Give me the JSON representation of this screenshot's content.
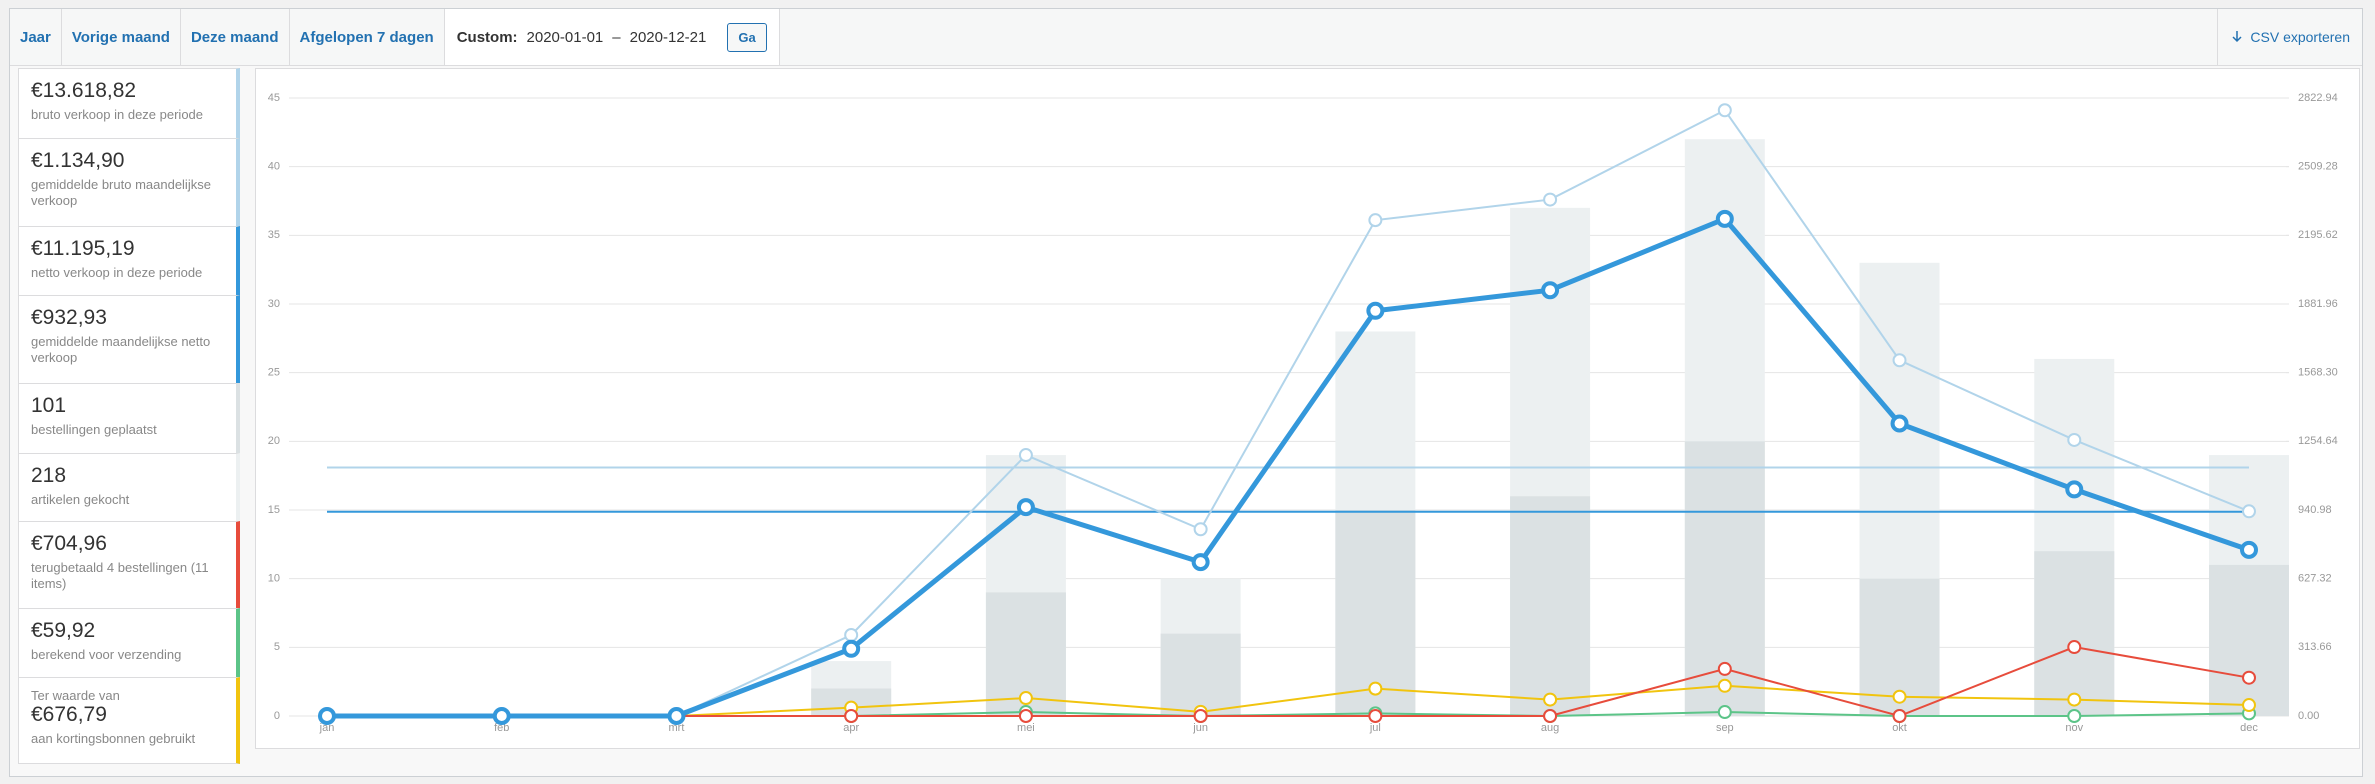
{
  "toolbar": {
    "tabs": [
      "Jaar",
      "Vorige maand",
      "Deze maand",
      "Afgelopen 7 dagen"
    ],
    "custom_label": "Custom:",
    "start_date": "2020-01-01",
    "separator": "–",
    "end_date": "2020-12-21",
    "button": "Ga",
    "export": "CSV exporteren"
  },
  "legend": [
    {
      "amount": "€13.618,82",
      "label": "bruto verkoop in deze periode",
      "color": "#b1d4ea"
    },
    {
      "amount": "€1.134,90",
      "label": "gemiddelde bruto maandelijkse verkoop",
      "color": "#b1d4ea"
    },
    {
      "amount": "€11.195,19",
      "label": "netto verkoop in deze periode",
      "color": "#3498db"
    },
    {
      "amount": "€932,93",
      "label": "gemiddelde maandelijkse netto verkoop",
      "color": "#3498db"
    },
    {
      "amount": "101",
      "label": "bestellingen geplaatst",
      "color": "#dbe1e3"
    },
    {
      "amount": "218",
      "label": "artikelen gekocht",
      "color": "#ecf0f1"
    },
    {
      "amount": "€704,96",
      "label": "terugbetaald 4 bestellingen (11 items)",
      "color": "#e74c3c"
    },
    {
      "amount": "€59,92",
      "label": "berekend voor verzending",
      "color": "#5cc488"
    },
    {
      "prefix": "Ter waarde van",
      "amount": "€676,79",
      "label": "aan kortingsbonnen gebruikt",
      "color": "#f1c40f"
    }
  ],
  "chart_data": {
    "type": "combo",
    "categories": [
      "jan",
      "feb",
      "mrt",
      "apr",
      "mei",
      "jun",
      "jul",
      "aug",
      "sep",
      "okt",
      "nov",
      "dec"
    ],
    "ylim": [
      0,
      45
    ],
    "yticks": [
      0,
      5,
      10,
      15,
      20,
      25,
      30,
      35,
      40,
      45
    ],
    "y2lim": [
      0,
      2822.94
    ],
    "y2ticks": [
      {
        "value": 0,
        "label": "0.00"
      },
      313.66,
      627.32,
      940.98,
      1254.64,
      {
        "value": 1568.3,
        "label": "1568.30"
      },
      1881.96,
      2195.62,
      2509.28,
      2822.94
    ],
    "grid": true,
    "series": [
      {
        "type": "bar",
        "color": "#ecf0f1",
        "values": [
          0,
          0,
          0,
          4,
          19,
          10,
          28,
          37,
          42,
          33,
          26,
          19
        ]
      },
      {
        "type": "bar",
        "color": "#dbe1e3",
        "values": [
          0,
          0,
          0,
          2,
          9,
          6,
          15,
          16,
          20,
          10,
          12,
          11
        ]
      },
      {
        "type": "line",
        "axis": "y2",
        "color": "#5cc488",
        "values": [
          0,
          0,
          0,
          0,
          18,
          0,
          12,
          0,
          18,
          0,
          0,
          12
        ]
      },
      {
        "type": "line",
        "axis": "y2",
        "color": "#f1c40f",
        "values": [
          0,
          0,
          0,
          38,
          82,
          19,
          125,
          75,
          138,
          88,
          75,
          50
        ]
      },
      {
        "type": "line",
        "axis": "y2",
        "color": "#e74c3c",
        "values": [
          0,
          0,
          0,
          0,
          0,
          0,
          0,
          0,
          215,
          0,
          315,
          175
        ]
      },
      {
        "type": "line",
        "axis": "y2",
        "color": "#b1d4ea",
        "values": [
          0,
          0,
          0,
          370,
          1192,
          853,
          2265,
          2359,
          2767,
          1625,
          1261,
          935
        ]
      },
      {
        "type": "line",
        "axis": "y2",
        "color": "#3498db",
        "values": [
          0,
          0,
          0,
          307,
          954,
          703,
          1851,
          1945,
          2271,
          1336,
          1035,
          759
        ]
      }
    ],
    "average_lines": [
      {
        "axis": "y2",
        "color": "#b1d4ea",
        "value": 1134.9
      },
      {
        "axis": "y2",
        "color": "#3498db",
        "value": 932.93
      }
    ]
  }
}
